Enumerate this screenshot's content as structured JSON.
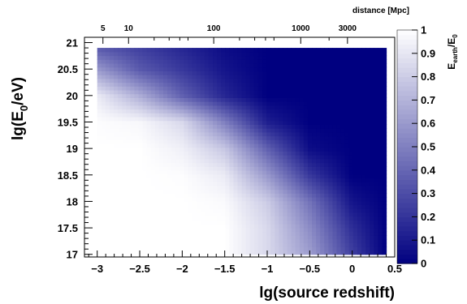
{
  "chart_data": {
    "type": "heatmap",
    "xlabel": "lg(source redshift)",
    "ylabel_main": "lg(E",
    "ylabel_sub": "0",
    "ylabel_end": "/eV)",
    "colorbar_label_main": "E",
    "colorbar_label_sub1": "earth",
    "colorbar_label_mid": "/E",
    "colorbar_label_sub2": "0",
    "top_axis_label": "distance [Mpc]",
    "xlim": [
      -3.15,
      0.5
    ],
    "ylim": [
      16.95,
      21.1
    ],
    "zlim": [
      0,
      1
    ],
    "x_ticks": [
      {
        "value": -3,
        "label": "−3"
      },
      {
        "value": -2.5,
        "label": "−2.5"
      },
      {
        "value": -2,
        "label": "−2"
      },
      {
        "value": -1.5,
        "label": "−1.5"
      },
      {
        "value": -1,
        "label": "−1"
      },
      {
        "value": -0.5,
        "label": "−0.5"
      },
      {
        "value": 0,
        "label": "0"
      },
      {
        "value": 0.5,
        "label": "0.5"
      }
    ],
    "y_ticks": [
      {
        "value": 17,
        "label": "17"
      },
      {
        "value": 17.5,
        "label": "17.5"
      },
      {
        "value": 18,
        "label": "18"
      },
      {
        "value": 18.5,
        "label": "18.5"
      },
      {
        "value": 19,
        "label": "19"
      },
      {
        "value": 19.5,
        "label": "19.5"
      },
      {
        "value": 20,
        "label": "20"
      },
      {
        "value": 20.5,
        "label": "20.5"
      },
      {
        "value": 21,
        "label": "21"
      }
    ],
    "top_ticks": [
      {
        "distance_mpc": 5,
        "label": "5"
      },
      {
        "distance_mpc": 10,
        "label": "10"
      },
      {
        "distance_mpc": 100,
        "label": "100"
      },
      {
        "distance_mpc": 1000,
        "label": "1000"
      },
      {
        "distance_mpc": 3000,
        "label": "3000"
      }
    ],
    "colorbar_ticks": [
      {
        "value": 0,
        "label": "0"
      },
      {
        "value": 0.1,
        "label": "0.1"
      },
      {
        "value": 0.2,
        "label": "0.2"
      },
      {
        "value": 0.3,
        "label": "0.3"
      },
      {
        "value": 0.4,
        "label": "0.4"
      },
      {
        "value": 0.5,
        "label": "0.5"
      },
      {
        "value": 0.6,
        "label": "0.6"
      },
      {
        "value": 0.7,
        "label": "0.7"
      },
      {
        "value": 0.8,
        "label": "0.8"
      },
      {
        "value": 0.9,
        "label": "0.9"
      },
      {
        "value": 1,
        "label": "1"
      }
    ],
    "colormap": {
      "low": "#000080",
      "high": "#ffffff"
    },
    "grid": false,
    "x_nodes": [
      -3.0,
      -2.5,
      -2.0,
      -1.5,
      -1.0,
      -0.5,
      0.0,
      0.4
    ],
    "y_nodes": [
      17.0,
      17.5,
      18.0,
      18.5,
      19.0,
      19.5,
      20.0,
      20.5,
      20.9
    ],
    "z_values": [
      [
        1.0,
        1.0,
        1.0,
        1.0,
        0.85,
        0.62,
        0.25,
        0.0
      ],
      [
        1.0,
        1.0,
        1.0,
        1.0,
        0.85,
        0.55,
        0.18,
        0.0
      ],
      [
        1.0,
        1.0,
        1.0,
        0.98,
        0.8,
        0.45,
        0.08,
        0.0
      ],
      [
        1.0,
        1.0,
        0.99,
        0.92,
        0.6,
        0.22,
        0.0,
        0.0
      ],
      [
        1.0,
        1.0,
        0.94,
        0.78,
        0.38,
        0.05,
        0.0,
        0.0
      ],
      [
        0.99,
        0.97,
        0.85,
        0.5,
        0.12,
        0.0,
        0.0,
        0.0
      ],
      [
        0.92,
        0.68,
        0.38,
        0.15,
        0.0,
        0.0,
        0.0,
        0.0
      ],
      [
        0.6,
        0.35,
        0.22,
        0.08,
        0.0,
        0.0,
        0.0,
        0.0
      ],
      [
        0.35,
        0.25,
        0.15,
        0.05,
        0.0,
        0.0,
        0.0,
        0.0
      ]
    ]
  }
}
